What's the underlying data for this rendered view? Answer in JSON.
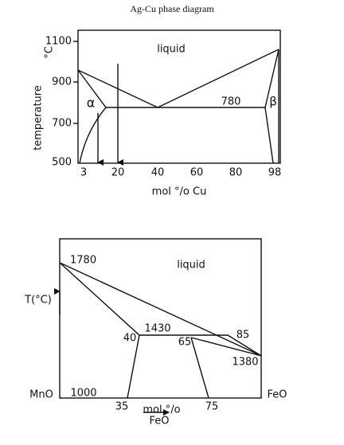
{
  "header": {
    "title": "Ag-Cu phase diagram"
  },
  "top": {
    "y_label": "temperature",
    "y_unit": "°C",
    "y_ticks": [
      "1100",
      "900",
      "700",
      "500"
    ],
    "x_ticks": [
      "3",
      "20",
      "40",
      "60",
      "80",
      "98"
    ],
    "x_label": "mol °/o Cu",
    "labels": {
      "liquid": "liquid",
      "eutectic": "780",
      "alpha": "α",
      "beta": "β"
    }
  },
  "bottom": {
    "y_label": "T(°C)",
    "x_label": "mol °/o",
    "x_label2": "FeO",
    "left_end": "MnO",
    "right_end": "FeO",
    "labels": {
      "liquid": "liquid",
      "t1": "1780",
      "t2": "1430",
      "t3": "1380",
      "t4": "1000",
      "c1": "40",
      "c2": "65",
      "c3": "85",
      "c4": "35",
      "c5": "75"
    }
  }
}
